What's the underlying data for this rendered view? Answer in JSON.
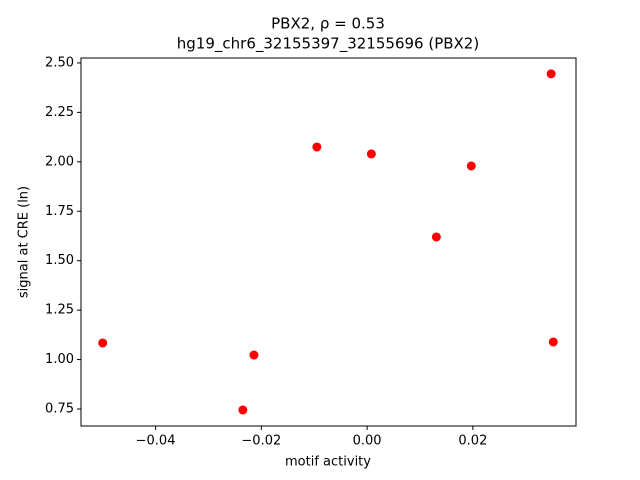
{
  "chart_data": {
    "type": "scatter",
    "title": "PBX2, ρ = 0.53",
    "subtitle": "hg19_chr6_32155397_32155696 (PBX2)",
    "x_label": "motif activity",
    "y_label": "signal at CRE (ln)",
    "color": "#ff0000",
    "grid": false,
    "x": [
      -0.05,
      -0.0235,
      -0.0214,
      -0.0095,
      0.0008,
      0.0131,
      0.0197,
      0.0348,
      0.0352
    ],
    "values": [
      1.084,
      0.745,
      1.023,
      2.075,
      2.04,
      1.62,
      1.979,
      2.445,
      1.089
    ],
    "xlim": [
      -0.0541,
      0.0395
    ],
    "ylim": [
      0.664,
      2.525
    ],
    "xticks": [
      {
        "value": -0.04,
        "label": "−0.04"
      },
      {
        "value": -0.02,
        "label": "−0.02"
      },
      {
        "value": 0,
        "label": "0.00"
      },
      0.02
    ],
    "yticks": [
      0.75,
      {
        "value": 1,
        "label": "1.00"
      },
      1.25,
      {
        "value": 1.5,
        "label": "1.50"
      },
      1.75,
      {
        "value": 2,
        "label": "2.00"
      },
      2.25,
      {
        "value": 2.5,
        "label": "2.50"
      }
    ]
  }
}
